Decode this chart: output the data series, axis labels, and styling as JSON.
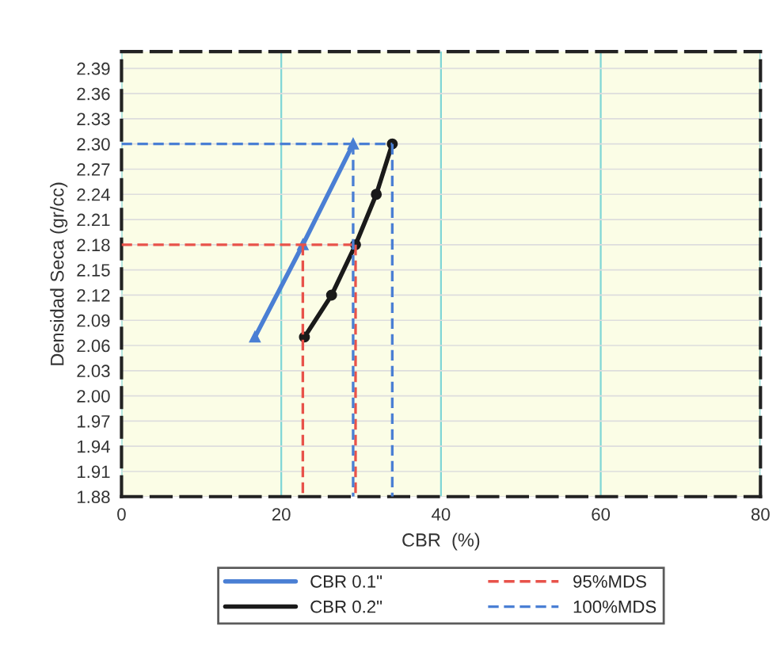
{
  "chart_data": {
    "type": "line",
    "xlabel": "CBR  (%)",
    "ylabel": "Densidad Seca (gr/cc)",
    "xlim": [
      0,
      80
    ],
    "xticks": [
      0,
      20,
      40,
      60,
      80
    ],
    "ylim": [
      1.88,
      2.41
    ],
    "yticks": [
      1.88,
      1.91,
      1.94,
      1.97,
      {
        "value": 2.0,
        "label": "2.00"
      },
      2.03,
      2.06,
      2.09,
      2.12,
      2.15,
      2.18,
      2.21,
      2.24,
      2.27,
      {
        "value": 2.3,
        "label": "2.30"
      },
      2.33,
      2.36,
      2.39
    ],
    "grid": true,
    "legend": "bottom",
    "series": [
      {
        "name": "CBR 0.1\"",
        "color": "#4a7fd4",
        "marker": "triangle",
        "line_style": "solid",
        "x": [
          16.7,
          22.7,
          29.0
        ],
        "values": [
          2.07,
          2.18,
          2.3
        ]
      },
      {
        "name": "CBR 0.2\"",
        "color": "#1a1a1a",
        "marker": "circle",
        "line_style": "solid",
        "x": [
          22.9,
          26.3,
          29.3,
          31.9,
          33.9
        ],
        "values": [
          2.07,
          2.12,
          2.18,
          2.24,
          2.3
        ]
      },
      {
        "name": "95%MDS",
        "color": "#e8524a",
        "marker": "none",
        "line_style": "dashed",
        "x": [
          0,
          29.3,
          null,
          22.7,
          22.7,
          null,
          29.3,
          29.3
        ],
        "values": [
          2.18,
          2.18,
          null,
          2.18,
          1.88,
          null,
          2.18,
          1.88
        ]
      },
      {
        "name": "100%MDS",
        "color": "#4a7fd4",
        "marker": "none",
        "line_style": "dashed",
        "x": [
          0,
          33.9,
          null,
          29.0,
          29.0,
          null,
          33.9,
          33.9
        ],
        "values": [
          2.3,
          2.3,
          null,
          2.3,
          1.88,
          null,
          2.3,
          1.88
        ]
      }
    ]
  }
}
